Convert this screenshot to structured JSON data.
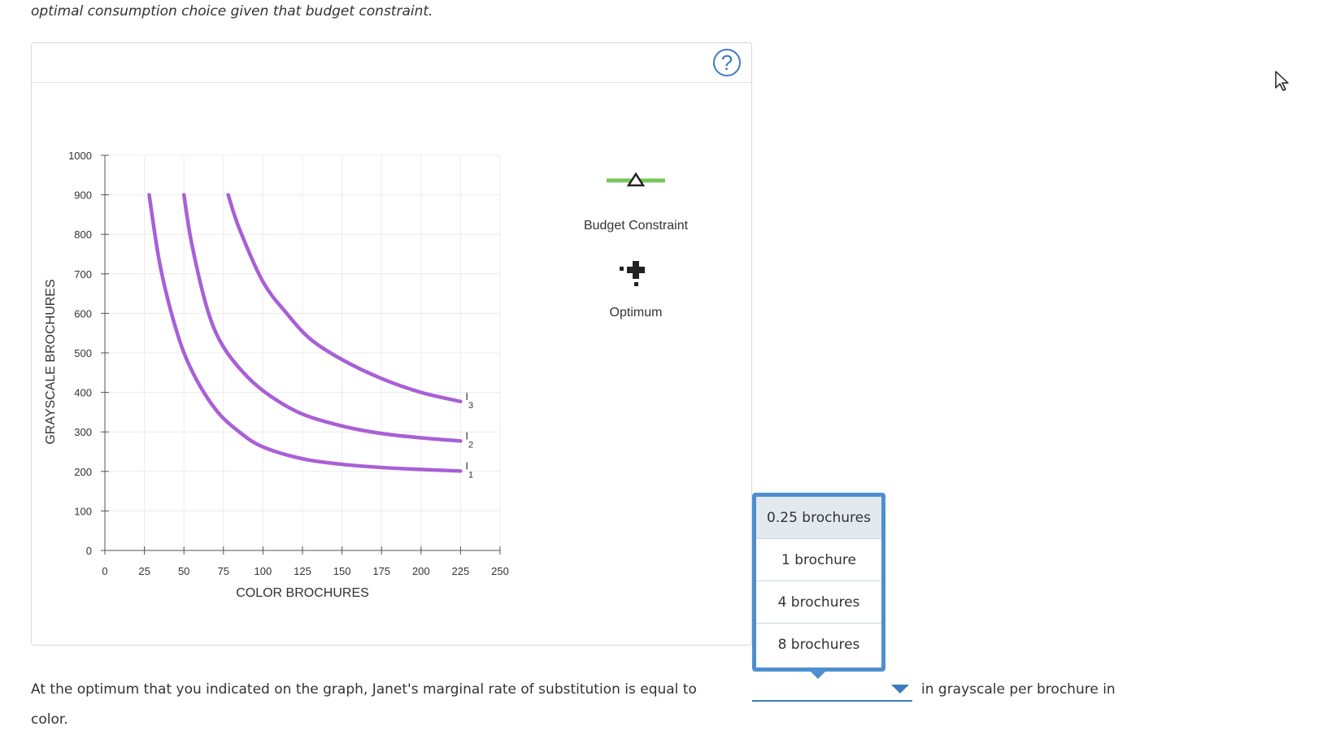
{
  "intro_text": "optimal consumption choice given that budget constraint.",
  "help_label": "?",
  "chart_data": {
    "type": "line",
    "xlabel": "COLOR BROCHURES",
    "ylabel": "GRAYSCALE BROCHURES",
    "xlim": [
      0,
      250
    ],
    "ylim": [
      0,
      1000
    ],
    "x_ticks": [
      0,
      25,
      50,
      75,
      100,
      125,
      150,
      175,
      200,
      225,
      250
    ],
    "y_ticks": [
      0,
      100,
      200,
      300,
      400,
      500,
      600,
      700,
      800,
      900,
      1000
    ],
    "grid": true,
    "series": [
      {
        "name": "I1",
        "label_main": "I",
        "label_sub": "1",
        "color": "#a95fd6",
        "x": [
          28,
          35,
          45,
          55,
          70,
          85,
          100,
          125,
          150,
          175,
          200,
          225
        ],
        "y": [
          900,
          720,
          560,
          455,
          357,
          300,
          262,
          232,
          218,
          210,
          205,
          201
        ]
      },
      {
        "name": "I2",
        "label_main": "I",
        "label_sub": "2",
        "color": "#a95fd6",
        "x": [
          50,
          55,
          65,
          75,
          90,
          105,
          125,
          150,
          175,
          200,
          225
        ],
        "y": [
          900,
          775,
          608,
          515,
          440,
          390,
          345,
          315,
          296,
          285,
          277
        ]
      },
      {
        "name": "I3",
        "label_main": "I",
        "label_sub": "3",
        "color": "#a95fd6",
        "x": [
          78,
          85,
          100,
          115,
          130,
          150,
          175,
          200,
          225
        ],
        "y": [
          900,
          815,
          680,
          600,
          535,
          483,
          435,
          400,
          377
        ]
      }
    ],
    "legend": [
      {
        "label": "Budget Constraint",
        "icon": "green-line-triangle-icon",
        "color": "#76c75e"
      },
      {
        "label": "Optimum",
        "icon": "black-plus-icon",
        "color": "#222222"
      }
    ]
  },
  "question": {
    "prefix": "At the optimum that you indicated on the graph, Janet's marginal rate of substitution is equal to",
    "suffix": "in grayscale per brochure in",
    "line2": "color."
  },
  "dropdown": {
    "selected": "",
    "options": [
      "0.25 brochures",
      "1 brochure",
      "4 brochures",
      "8 brochures"
    ]
  },
  "accent_color": "#3c7bc0"
}
